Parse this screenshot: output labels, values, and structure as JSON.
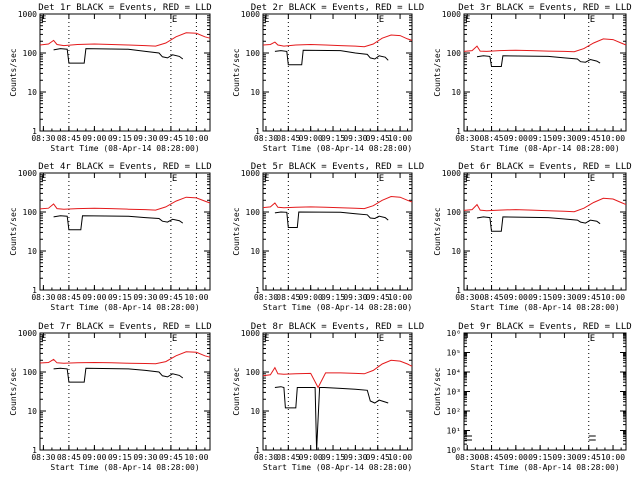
{
  "colors": {
    "events": "#000000",
    "lld": "#e41a1c",
    "axis": "#000000",
    "background": "#ffffff"
  },
  "shared": {
    "xlabel": "Start Time (08-Apr-14 08:28:00)",
    "ylabel": "Counts/sec",
    "xticks": [
      "08:30",
      "08:45",
      "09:00",
      "09:15",
      "09:30",
      "09:45",
      "10:00"
    ],
    "yticks": [
      "1",
      "10",
      "100",
      "1000"
    ],
    "marker": "E"
  },
  "chart_data": [
    {
      "type": "line",
      "title": "Det 1r BLACK = Events, RED = LLD",
      "xlim": [
        "08:28",
        "10:08"
      ],
      "ylim": [
        1,
        1000
      ],
      "yscale": "log",
      "vlines": [
        "08:45",
        "09:45",
        "10:00"
      ],
      "markers": [
        "08:28",
        "09:45"
      ],
      "series": [
        {
          "name": "LLD",
          "x": [
            "08:28",
            "08:33",
            "08:36",
            "08:38",
            "08:42",
            "08:50",
            "09:00",
            "09:10",
            "09:20",
            "09:30",
            "09:36",
            "09:42",
            "09:48",
            "09:54",
            "10:00",
            "10:05",
            "10:08"
          ],
          "y": [
            160,
            170,
            210,
            165,
            155,
            165,
            170,
            165,
            160,
            155,
            150,
            180,
            260,
            330,
            320,
            260,
            240
          ]
        },
        {
          "name": "Events",
          "x": [
            "08:36",
            "08:40",
            "08:44",
            "08:45",
            "08:54",
            "08:55",
            "09:20",
            "09:30",
            "09:38",
            "09:40",
            "09:43",
            "09:46",
            "09:50",
            "09:52"
          ],
          "y": [
            120,
            130,
            125,
            55,
            55,
            130,
            125,
            110,
            100,
            80,
            75,
            90,
            82,
            70
          ]
        }
      ]
    },
    {
      "type": "line",
      "title": "Det 2r BLACK = Events, RED = LLD",
      "xlim": [
        "08:28",
        "10:08"
      ],
      "ylim": [
        1,
        1000
      ],
      "yscale": "log",
      "vlines": [
        "08:45",
        "09:45"
      ],
      "markers": [
        "08:28",
        "09:45"
      ],
      "series": [
        {
          "name": "LLD",
          "x": [
            "08:28",
            "08:33",
            "08:36",
            "08:38",
            "08:42",
            "08:50",
            "09:00",
            "09:10",
            "09:20",
            "09:30",
            "09:36",
            "09:42",
            "09:48",
            "09:54",
            "10:00",
            "10:05",
            "10:08"
          ],
          "y": [
            160,
            165,
            190,
            160,
            150,
            160,
            165,
            160,
            155,
            150,
            145,
            170,
            240,
            290,
            280,
            230,
            210
          ]
        },
        {
          "name": "Events",
          "x": [
            "08:36",
            "08:40",
            "08:44",
            "08:45",
            "08:54",
            "08:55",
            "09:20",
            "09:30",
            "09:38",
            "09:40",
            "09:43",
            "09:46",
            "09:50",
            "09:52"
          ],
          "y": [
            110,
            115,
            110,
            50,
            50,
            118,
            115,
            100,
            92,
            75,
            70,
            85,
            78,
            65
          ]
        }
      ]
    },
    {
      "type": "line",
      "title": "Det 3r BLACK = Events, RED = LLD",
      "xlim": [
        "08:28",
        "10:08"
      ],
      "ylim": [
        1,
        1000
      ],
      "yscale": "log",
      "vlines": [
        "08:45",
        "09:45"
      ],
      "markers": [
        "08:28",
        "09:45"
      ],
      "series": [
        {
          "name": "LLD",
          "x": [
            "08:28",
            "08:33",
            "08:36",
            "08:38",
            "08:42",
            "08:50",
            "09:00",
            "09:10",
            "09:20",
            "09:30",
            "09:36",
            "09:42",
            "09:48",
            "09:54",
            "10:00",
            "10:05",
            "10:08"
          ],
          "y": [
            110,
            115,
            150,
            112,
            110,
            115,
            118,
            115,
            112,
            110,
            108,
            130,
            180,
            230,
            220,
            180,
            160
          ]
        },
        {
          "name": "Events",
          "x": [
            "08:36",
            "08:40",
            "08:44",
            "08:45",
            "08:51",
            "08:52",
            "09:20",
            "09:30",
            "09:38",
            "09:40",
            "09:43",
            "09:46",
            "09:50",
            "09:52"
          ],
          "y": [
            80,
            85,
            82,
            45,
            45,
            85,
            82,
            75,
            70,
            60,
            58,
            68,
            62,
            55
          ]
        }
      ]
    },
    {
      "type": "line",
      "title": "Det 4r BLACK = Events, RED = LLD",
      "xlim": [
        "08:28",
        "10:08"
      ],
      "ylim": [
        1,
        1000
      ],
      "yscale": "log",
      "vlines": [
        "08:45",
        "09:45",
        "10:00"
      ],
      "markers": [
        "08:28",
        "09:45"
      ],
      "series": [
        {
          "name": "LLD",
          "x": [
            "08:28",
            "08:33",
            "08:36",
            "08:38",
            "08:42",
            "08:50",
            "09:00",
            "09:10",
            "09:20",
            "09:30",
            "09:36",
            "09:42",
            "09:48",
            "09:54",
            "10:00",
            "10:05",
            "10:08"
          ],
          "y": [
            120,
            125,
            160,
            122,
            118,
            122,
            125,
            122,
            118,
            115,
            112,
            135,
            190,
            240,
            230,
            190,
            170
          ]
        },
        {
          "name": "Events",
          "x": [
            "08:36",
            "08:40",
            "08:44",
            "08:45",
            "08:52",
            "08:53",
            "09:20",
            "09:30",
            "09:38",
            "09:40",
            "09:43",
            "09:46",
            "09:50",
            "09:52"
          ],
          "y": [
            75,
            80,
            78,
            35,
            35,
            80,
            78,
            72,
            68,
            58,
            55,
            65,
            60,
            52
          ]
        }
      ]
    },
    {
      "type": "line",
      "title": "Det 5r BLACK = Events, RED = LLD",
      "xlim": [
        "08:28",
        "10:08"
      ],
      "ylim": [
        1,
        1000
      ],
      "yscale": "log",
      "vlines": [
        "08:45",
        "09:45"
      ],
      "markers": [
        "08:28",
        "09:45"
      ],
      "series": [
        {
          "name": "LLD",
          "x": [
            "08:28",
            "08:33",
            "08:36",
            "08:38",
            "08:42",
            "08:50",
            "09:00",
            "09:10",
            "09:20",
            "09:30",
            "09:36",
            "09:42",
            "09:48",
            "09:54",
            "10:00",
            "10:05",
            "10:08"
          ],
          "y": [
            130,
            135,
            170,
            132,
            128,
            132,
            135,
            132,
            128,
            125,
            122,
            145,
            200,
            250,
            240,
            200,
            180
          ]
        },
        {
          "name": "Events",
          "x": [
            "08:36",
            "08:40",
            "08:44",
            "08:45",
            "08:51",
            "08:52",
            "09:20",
            "09:30",
            "09:38",
            "09:40",
            "09:43",
            "09:46",
            "09:50",
            "09:52"
          ],
          "y": [
            95,
            100,
            98,
            40,
            40,
            100,
            98,
            90,
            85,
            70,
            68,
            78,
            72,
            62
          ]
        }
      ]
    },
    {
      "type": "line",
      "title": "Det 6r BLACK = Events, RED = LLD",
      "xlim": [
        "08:28",
        "10:08"
      ],
      "ylim": [
        1,
        1000
      ],
      "yscale": "log",
      "vlines": [
        "08:45",
        "09:45"
      ],
      "markers": [
        "08:28",
        "09:45"
      ],
      "series": [
        {
          "name": "LLD",
          "x": [
            "08:28",
            "08:33",
            "08:36",
            "08:38",
            "08:42",
            "08:50",
            "09:00",
            "09:10",
            "09:20",
            "09:30",
            "09:36",
            "09:42",
            "09:48",
            "09:54",
            "10:00",
            "10:05",
            "10:08"
          ],
          "y": [
            110,
            115,
            155,
            112,
            108,
            112,
            115,
            112,
            108,
            105,
            102,
            125,
            175,
            225,
            215,
            175,
            155
          ]
        },
        {
          "name": "Events",
          "x": [
            "08:36",
            "08:40",
            "08:44",
            "08:45",
            "08:51",
            "08:52",
            "09:20",
            "09:30",
            "09:38",
            "09:40",
            "09:43",
            "09:46",
            "09:50",
            "09:52"
          ],
          "y": [
            70,
            75,
            72,
            32,
            32,
            75,
            72,
            66,
            62,
            55,
            52,
            62,
            58,
            50
          ]
        }
      ]
    },
    {
      "type": "line",
      "title": "Det 7r BLACK = Events, RED = LLD",
      "xlim": [
        "08:28",
        "10:08"
      ],
      "ylim": [
        1,
        1000
      ],
      "yscale": "log",
      "vlines": [
        "08:45",
        "09:45",
        "10:00"
      ],
      "markers": [
        "08:28",
        "09:45"
      ],
      "series": [
        {
          "name": "LLD",
          "x": [
            "08:28",
            "08:33",
            "08:36",
            "08:38",
            "08:42",
            "08:50",
            "09:00",
            "09:10",
            "09:20",
            "09:30",
            "09:36",
            "09:42",
            "09:48",
            "09:54",
            "10:00",
            "10:05",
            "10:08"
          ],
          "y": [
            170,
            175,
            210,
            172,
            168,
            172,
            175,
            172,
            168,
            165,
            162,
            185,
            260,
            330,
            320,
            260,
            240
          ]
        },
        {
          "name": "Events",
          "x": [
            "08:36",
            "08:40",
            "08:44",
            "08:45",
            "08:54",
            "08:55",
            "09:20",
            "09:30",
            "09:38",
            "09:40",
            "09:43",
            "09:46",
            "09:50",
            "09:52"
          ],
          "y": [
            120,
            125,
            120,
            55,
            55,
            125,
            120,
            110,
            100,
            80,
            75,
            90,
            82,
            70
          ]
        }
      ]
    },
    {
      "type": "line",
      "title": "Det 8r BLACK = Events, RED = LLD",
      "xlim": [
        "08:28",
        "10:08"
      ],
      "ylim": [
        1,
        1000
      ],
      "yscale": "log",
      "vlines": [
        "08:45",
        "09:45"
      ],
      "markers": [
        "08:28",
        "09:45"
      ],
      "series": [
        {
          "name": "LLD",
          "x": [
            "08:28",
            "08:33",
            "08:36",
            "08:38",
            "08:42",
            "08:50",
            "09:00",
            "09:05",
            "09:10",
            "09:20",
            "09:30",
            "09:36",
            "09:42",
            "09:48",
            "09:54",
            "10:00",
            "10:05",
            "10:08"
          ],
          "y": [
            80,
            85,
            130,
            90,
            88,
            90,
            92,
            40,
            95,
            95,
            92,
            90,
            110,
            160,
            200,
            190,
            160,
            140
          ]
        },
        {
          "name": "Events",
          "x": [
            "08:36",
            "08:40",
            "08:42",
            "08:43",
            "08:50",
            "08:51",
            "09:03",
            "09:04",
            "09:06",
            "09:08",
            "09:09",
            "09:20",
            "09:30",
            "09:38",
            "09:40",
            "09:43",
            "09:46",
            "09:50",
            "09:52"
          ],
          "y": [
            40,
            42,
            40,
            12,
            12,
            40,
            40,
            1,
            40,
            40,
            40,
            38,
            36,
            34,
            18,
            16,
            19,
            17,
            16
          ]
        }
      ]
    },
    {
      "type": "line",
      "title": "Det 9r BLACK = Events, RED = LLD",
      "xlim": [
        "08:28",
        "10:08"
      ],
      "ylim": [
        1,
        1000000
      ],
      "yscale": "log",
      "vlines": [
        "08:45",
        "09:45"
      ],
      "markers": [
        "09:45"
      ],
      "yticks": [
        "10⁰",
        "10¹",
        "10²",
        "10³",
        "10⁴",
        "10⁵",
        "10⁶"
      ],
      "series": []
    }
  ]
}
